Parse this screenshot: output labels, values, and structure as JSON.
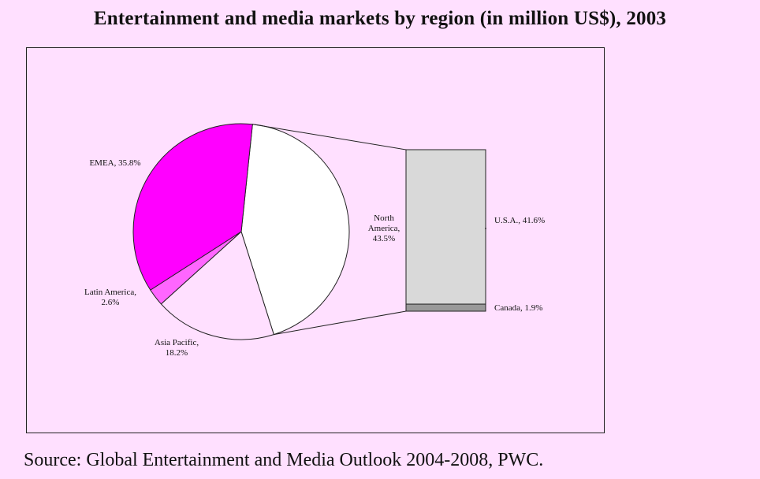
{
  "title": "Entertainment and media markets by region (in million US$), 2003",
  "source": "Source:  Global Entertainment and Media Outlook 2004-2008, PWC.",
  "colors": {
    "background": "#ffe0ff",
    "emea": "#ff00ff",
    "latin_america": "#ff66ff",
    "asia_pacific": "#ffe0ff",
    "north_america": "#ffffff",
    "usa": "#d9d9d9",
    "canada": "#999999",
    "stroke": "#222222"
  },
  "chart_data": {
    "type": "pie",
    "subtype": "bar-of-pie",
    "unit": "%",
    "slices": [
      {
        "key": "na",
        "label_lines": [
          "North",
          "America,",
          "43.5%"
        ],
        "value": 43.5,
        "color": "#ffffff"
      },
      {
        "key": "asia",
        "label_lines": [
          "Asia Pacific,",
          "18.2%"
        ],
        "value": 18.2,
        "color": "#ffe0ff"
      },
      {
        "key": "latam",
        "label_lines": [
          "Latin America,",
          "2.6%"
        ],
        "value": 2.6,
        "color": "#ff66ff"
      },
      {
        "key": "emea",
        "label_lines": [
          "EMEA, 35.8%"
        ],
        "value": 35.8,
        "color": "#ff00ff"
      }
    ],
    "breakout": {
      "of": "na",
      "segments": [
        {
          "key": "usa",
          "label": "U.S.A., 41.6%",
          "value": 41.6,
          "color": "#d9d9d9"
        },
        {
          "key": "canada",
          "label": "Canada, 1.9%",
          "value": 1.9,
          "color": "#999999"
        }
      ]
    }
  }
}
